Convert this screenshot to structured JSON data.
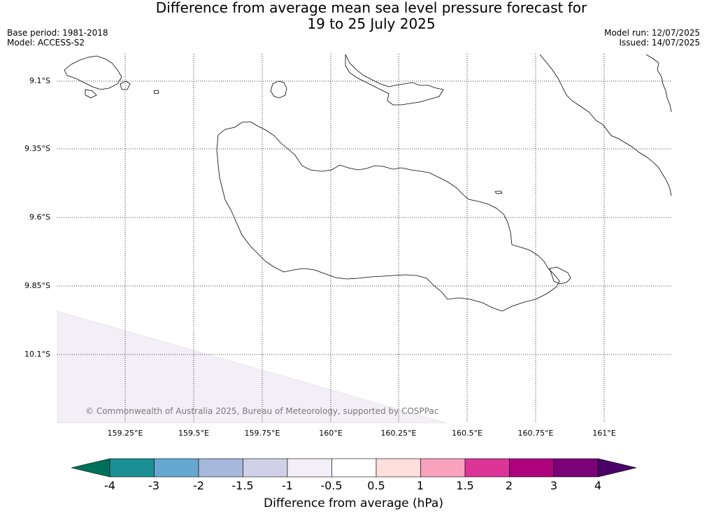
{
  "title": {
    "line1": "Difference from average mean sea level pressure forecast for",
    "line2": "19 to 25 July 2025"
  },
  "meta": {
    "base_period": "Base period: 1981-2018",
    "model": "Model: ACCESS-S2",
    "model_run": "Model run: 12/07/2025",
    "issued": "Issued: 14/07/2025"
  },
  "map": {
    "lat_labels": [
      "9.1°S",
      "9.35°S",
      "9.6°S",
      "9.85°S",
      "10.1°S"
    ],
    "lon_labels": [
      "159.25°E",
      "159.5°E",
      "159.75°E",
      "160°E",
      "160.25°E",
      "160.5°E",
      "160.75°E",
      "161°E"
    ],
    "shaded_band_color": "#f3eff6",
    "coastline_color": "#000000"
  },
  "copyright": "© Commonwealth of Australia 2025, Bureau of Meteorology, supported by COSPPac",
  "colorbar": {
    "title": "Difference from average (hPa)",
    "tick_labels": [
      "-4",
      "-3",
      "-2",
      "-1.5",
      "-1",
      "-0.5",
      "0.5",
      "1",
      "1.5",
      "2",
      "3",
      "4"
    ],
    "under_color": "#00705a",
    "over_color": "#4b0068",
    "colors": [
      "#1a9095",
      "#66a8d0",
      "#a6b8db",
      "#d0d1e6",
      "#f3eff6",
      "#ffffff",
      "#ffdede",
      "#f9a2be",
      "#dd3497",
      "#ae017e",
      "#7a0177"
    ]
  }
}
